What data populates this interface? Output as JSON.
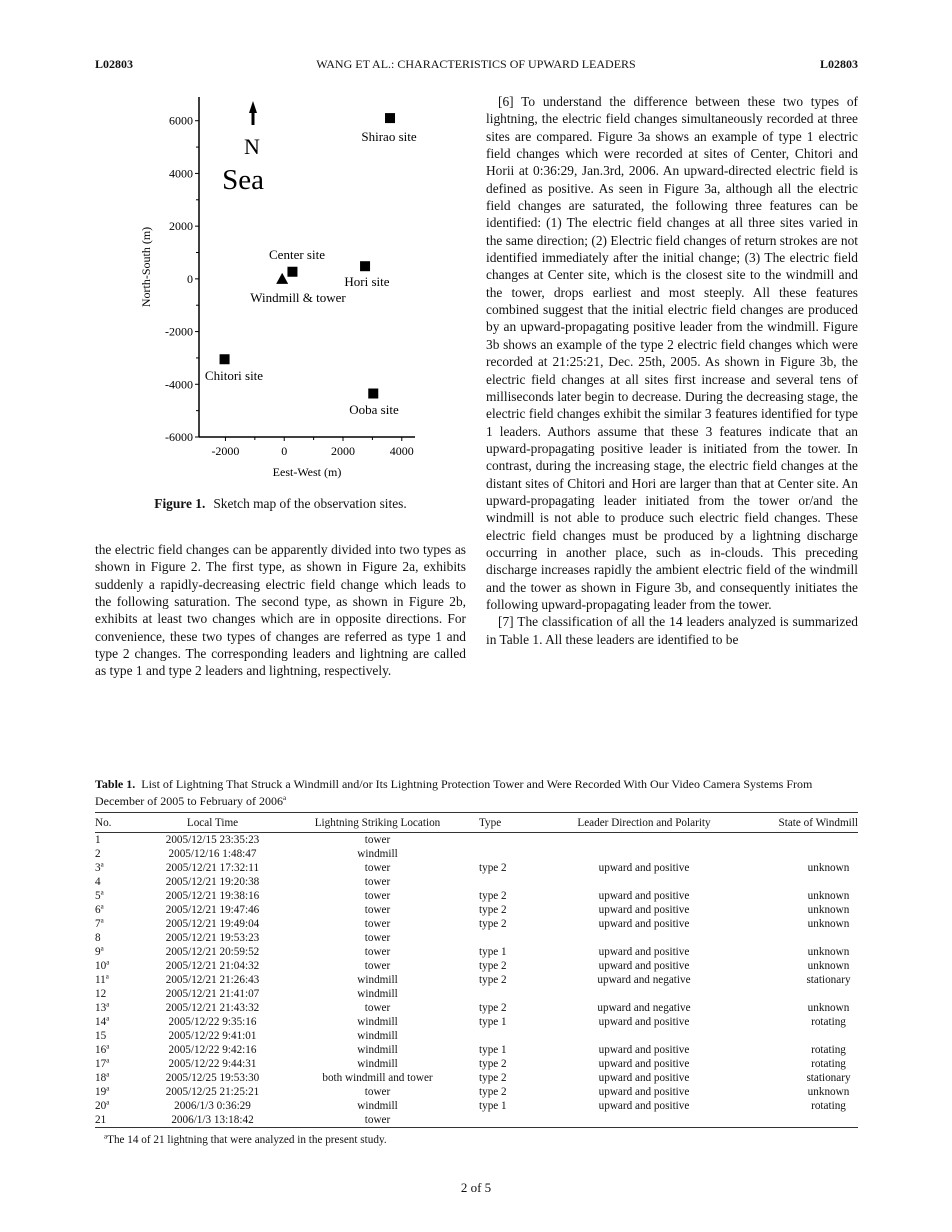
{
  "header": {
    "left": "L02803",
    "center": "WANG ET AL.: CHARACTERISTICS OF UPWARD LEADERS",
    "right": "L02803"
  },
  "figure": {
    "label": "Figure 1.",
    "caption": "Sketch map of the observation sites.",
    "chart_data": {
      "type": "scatter",
      "xlabel": "Eest-West (m)",
      "ylabel": "North-South (m)",
      "xlim": [
        -2900,
        4450
      ],
      "ylim": [
        -6000,
        6900
      ],
      "xticks": [
        -2000,
        0,
        2000,
        4000
      ],
      "yticks": [
        6000,
        4000,
        2000,
        0,
        -2000,
        -4000,
        -6000
      ],
      "grid": false,
      "annotations": {
        "north": "N",
        "sea": "Sea"
      },
      "points": [
        {
          "label": "Shirao site",
          "x": 3600,
          "y": 6100,
          "marker": "square"
        },
        {
          "label": "Center site",
          "x": 280,
          "y": 270,
          "marker": "square"
        },
        {
          "label": "Windmill & tower",
          "x": -70,
          "y": 0,
          "marker": "triangle"
        },
        {
          "label": "Hori site",
          "x": 2750,
          "y": 480,
          "marker": "square"
        },
        {
          "label": "Chitori site",
          "x": -2030,
          "y": -3050,
          "marker": "square"
        },
        {
          "label": "Ooba site",
          "x": 3030,
          "y": -4350,
          "marker": "square"
        }
      ]
    }
  },
  "left_text": "the electric field changes can be apparently divided into two types as shown in Figure 2. The first type, as shown in Figure 2a, exhibits suddenly a rapidly-decreasing electric field change which leads to the following saturation. The second type, as shown in Figure 2b, exhibits at least two changes which are in opposite directions. For convenience, these two types of changes are referred as type 1 and type 2 changes. The corresponding leaders and lightning are called as type 1 and type 2 leaders and lightning, respectively.",
  "right_paragraphs": [
    {
      "num": "[6]",
      "text": "To understand the difference between these two types of lightning, the electric field changes simultaneously recorded at three sites are compared. Figure 3a shows an example of type 1 electric field changes which were recorded at sites of Center, Chitori and Horii at 0:36:29, Jan.3rd, 2006. An upward-directed electric field is defined as positive. As seen in Figure 3a, although all the electric field changes are saturated, the following three features can be identified: (1) The electric field changes at all three sites varied in the same direction; (2) Electric field changes of return strokes are not identified immediately after the initial change; (3) The electric field changes at Center site, which is the closest site to the windmill and the tower, drops earliest and most steeply. All these features combined suggest that the initial electric field changes are produced by an upward-propagating positive leader from the windmill. Figure 3b shows an example of the type 2 electric field changes which were recorded at 21:25:21, Dec. 25th, 2005. As shown in Figure 3b, the electric field changes at all sites first increase and several tens of milliseconds later begin to decrease. During the decreasing stage, the electric field changes exhibit the similar 3 features identified for type 1 leaders. Authors assume that these 3 features indicate that an upward-propagating positive leader is initiated from the tower. In contrast, during the increasing stage, the electric field changes at the distant sites of Chitori and Hori are larger than that at Center site. An upward-propagating leader initiated from the tower or/and the windmill is not able to produce such electric field changes. These electric field changes must be produced by a lightning discharge occurring in another place, such as in-clouds. This preceding discharge increases rapidly the ambient electric field of the windmill and the tower as shown in Figure 3b, and consequently initiates the following upward-propagating leader from the tower."
    },
    {
      "num": "[7]",
      "text": "The classification of all the 14 leaders analyzed is summarized in Table 1. All these leaders are identified to be"
    }
  ],
  "table": {
    "label": "Table 1.",
    "caption": "List of Lightning That Struck a Windmill and/or Its Lightning Protection Tower and Were Recorded With Our Video Camera Systems From December of 2005 to February of 2006",
    "caption_mark": "a",
    "columns": [
      "No.",
      "Local Time",
      "Lightning Striking Location",
      "Type",
      "Leader Direction and Polarity",
      "State of Windmill"
    ],
    "rows": [
      [
        "1",
        "",
        "2005/12/15 23:35:23",
        "tower",
        "",
        "",
        ""
      ],
      [
        "2",
        "",
        "2005/12/16 1:48:47",
        "windmill",
        "",
        "",
        ""
      ],
      [
        "3",
        "a",
        "2005/12/21 17:32:11",
        "tower",
        "type 2",
        "upward and positive",
        "unknown"
      ],
      [
        "4",
        "",
        "2005/12/21 19:20:38",
        "tower",
        "",
        "",
        ""
      ],
      [
        "5",
        "a",
        "2005/12/21 19:38:16",
        "tower",
        "type 2",
        "upward and positive",
        "unknown"
      ],
      [
        "6",
        "a",
        "2005/12/21 19:47:46",
        "tower",
        "type 2",
        "upward and positive",
        "unknown"
      ],
      [
        "7",
        "a",
        "2005/12/21 19:49:04",
        "tower",
        "type 2",
        "upward and positive",
        "unknown"
      ],
      [
        "8",
        "",
        "2005/12/21 19:53:23",
        "tower",
        "",
        "",
        ""
      ],
      [
        "9",
        "a",
        "2005/12/21 20:59:52",
        "tower",
        "type 1",
        "upward and positive",
        "unknown"
      ],
      [
        "10",
        "a",
        "2005/12/21 21:04:32",
        "tower",
        "type 2",
        "upward and positive",
        "unknown"
      ],
      [
        "11",
        "a",
        "2005/12/21 21:26:43",
        "windmill",
        "type 2",
        "upward and negative",
        "stationary"
      ],
      [
        "12",
        "",
        "2005/12/21 21:41:07",
        "windmill",
        "",
        "",
        ""
      ],
      [
        "13",
        "a",
        "2005/12/21 21:43:32",
        "tower",
        "type 2",
        "upward and negative",
        "unknown"
      ],
      [
        "14",
        "a",
        "2005/12/22 9:35:16",
        "windmill",
        "type 1",
        "upward and positive",
        "rotating"
      ],
      [
        "15",
        "",
        "2005/12/22 9:41:01",
        "windmill",
        "",
        "",
        ""
      ],
      [
        "16",
        "a",
        "2005/12/22 9:42:16",
        "windmill",
        "type 1",
        "upward and positive",
        "rotating"
      ],
      [
        "17",
        "a",
        "2005/12/22 9:44:31",
        "windmill",
        "type 2",
        "upward and positive",
        "rotating"
      ],
      [
        "18",
        "a",
        "2005/12/25 19:53:30",
        "both windmill and tower",
        "type 2",
        "upward and positive",
        "stationary"
      ],
      [
        "19",
        "a",
        "2005/12/25 21:25:21",
        "tower",
        "type 2",
        "upward and positive",
        "unknown"
      ],
      [
        "20",
        "a",
        "2006/1/3 0:36:29",
        "windmill",
        "type 1",
        "upward and positive",
        "rotating"
      ],
      [
        "21",
        "",
        "2006/1/3 13:18:42",
        "tower",
        "",
        "",
        ""
      ]
    ],
    "footnote_mark": "a",
    "footnote": "The 14 of 21 lightning that were analyzed in the present study."
  },
  "page_number": "2 of 5"
}
